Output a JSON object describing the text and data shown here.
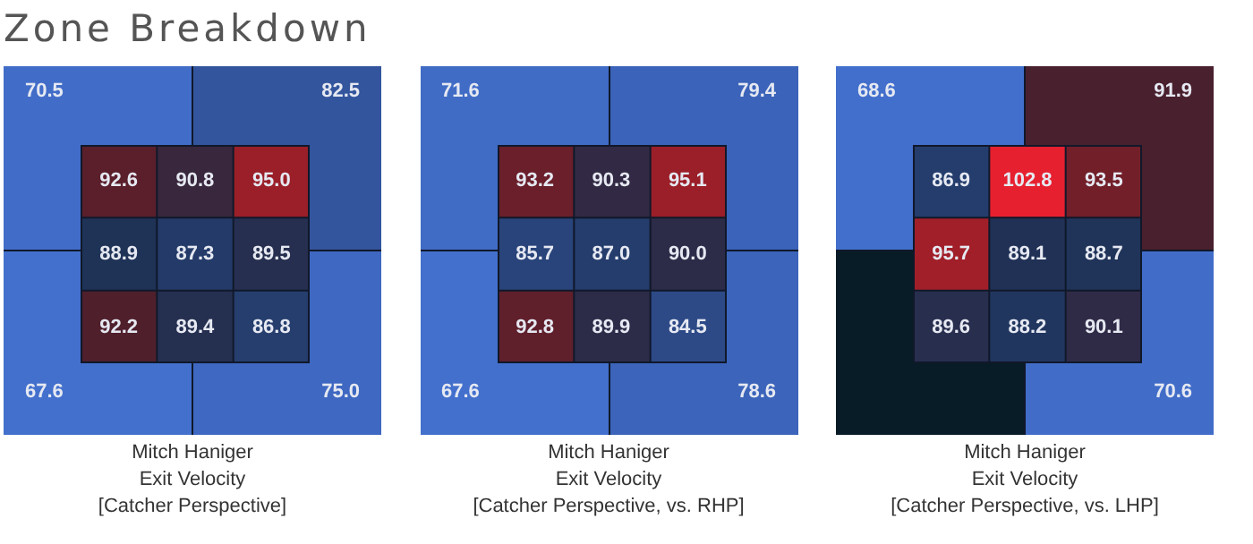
{
  "chart_data": [
    {
      "type": "heatmap",
      "title": "Zone Breakdown",
      "categories": [
        null,
        null
      ],
      "y_categories": [
        null,
        null
      ],
      "cells": [
        [
          70.5,
          82.5
        ],
        [
          67.6,
          75.0
        ]
      ],
      "cell_labels": [
        [
          "70.5",
          "82.5"
        ],
        [
          "67.6",
          "75.0"
        ]
      ]
    },
    {
      "type": "heatmap",
      "categories": [
        null,
        null,
        null
      ],
      "y_categories": [
        null,
        null,
        null
      ],
      "cells": [
        [
          92.6,
          90.8,
          95.0
        ],
        [
          88.9,
          87.3,
          89.5
        ],
        [
          92.2,
          89.4,
          86.8
        ]
      ],
      "cell_labels": [
        [
          "92.6",
          "90.8",
          "95.0"
        ],
        [
          "88.9",
          "87.3",
          "89.5"
        ],
        [
          "92.2",
          "89.4",
          "86.8"
        ]
      ],
      "annotations": [
        "Mitch Haniger",
        "Exit Velocity",
        "[Catcher Perspective]"
      ]
    },
    {
      "type": "heatmap",
      "categories": [
        null,
        null
      ],
      "y_categories": [
        null,
        null
      ],
      "cells": [
        [
          71.6,
          79.4
        ],
        [
          67.6,
          78.6
        ]
      ],
      "cell_labels": [
        [
          "71.6",
          "79.4"
        ],
        [
          "67.6",
          "78.6"
        ]
      ]
    },
    {
      "type": "heatmap",
      "categories": [
        null,
        null,
        null
      ],
      "y_categories": [
        null,
        null,
        null
      ],
      "cells": [
        [
          93.2,
          90.3,
          95.1
        ],
        [
          85.7,
          87.0,
          90.0
        ],
        [
          92.8,
          89.9,
          84.5
        ]
      ],
      "cell_labels": [
        [
          "93.2",
          "90.3",
          "95.1"
        ],
        [
          "85.7",
          "87.0",
          "90.0"
        ],
        [
          "92.8",
          "89.9",
          "84.5"
        ]
      ],
      "annotations": [
        "Mitch Haniger",
        "Exit Velocity",
        "[Catcher Perspective, vs. RHP]"
      ]
    },
    {
      "type": "heatmap",
      "categories": [
        null,
        null
      ],
      "y_categories": [
        null,
        null
      ],
      "cells": [
        [
          68.6,
          91.9
        ],
        [
          null,
          70.6
        ]
      ],
      "cell_labels": [
        [
          "68.6",
          "91.9"
        ],
        [
          null,
          "70.6"
        ]
      ]
    },
    {
      "type": "heatmap",
      "categories": [
        null,
        null,
        null
      ],
      "y_categories": [
        null,
        null,
        null
      ],
      "cells": [
        [
          86.9,
          102.8,
          93.5
        ],
        [
          95.7,
          89.1,
          88.7
        ],
        [
          89.6,
          88.2,
          90.1
        ]
      ],
      "cell_labels": [
        [
          "86.9",
          "102.8",
          "93.5"
        ],
        [
          "95.7",
          "89.1",
          "88.7"
        ],
        [
          "89.6",
          "88.2",
          "90.1"
        ]
      ],
      "annotations": [
        "Mitch Haniger",
        "Exit Velocity",
        "[Catcher Perspective, vs. LHP]"
      ]
    }
  ]
}
